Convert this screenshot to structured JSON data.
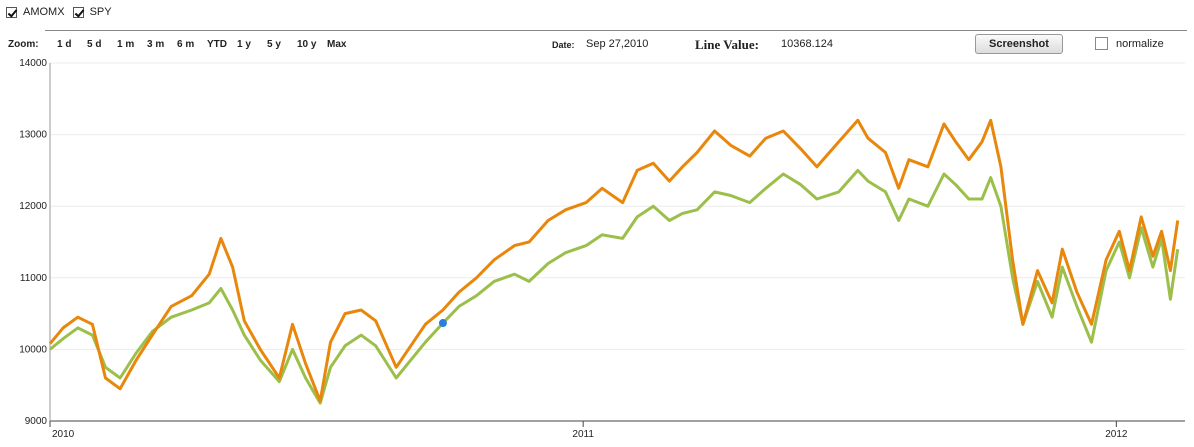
{
  "legend": [
    {
      "label": "AMOMX",
      "checked": true
    },
    {
      "label": "SPY",
      "checked": true
    }
  ],
  "toolbar": {
    "zoom_label": "Zoom:",
    "zoom_options": [
      "1 d",
      "5 d",
      "1 m",
      "3 m",
      "6 m",
      "YTD",
      "1 y",
      "5 y",
      "10 y",
      "Max"
    ],
    "date_label": "Date:",
    "date_value": "Sep 27,2010",
    "line_value_label": "Line Value:",
    "line_value": "10368.124",
    "screenshot_label": "Screenshot",
    "normalize_label": "normalize",
    "normalize_checked": false
  },
  "colors": {
    "AMOMX": "#e8870c",
    "SPY": "#9cbf4b",
    "marker": "#2a7de1"
  },
  "chart_data": {
    "type": "line",
    "title": "",
    "xlabel": "",
    "ylabel": "",
    "ylim": [
      9000,
      14000
    ],
    "y_ticks": [
      9000,
      10000,
      11000,
      12000,
      13000,
      14000
    ],
    "x_ticks": [
      {
        "label": "2010",
        "date": "2010-01-01"
      },
      {
        "label": "2011",
        "date": "2011-01-01"
      },
      {
        "label": "2012",
        "date": "2012-01-01"
      }
    ],
    "xlim": [
      "2010-01-01",
      "2012-02-17"
    ],
    "grid": true,
    "hover_point": {
      "date": "2010-09-27",
      "value": 10368.124,
      "series": "SPY"
    },
    "series": [
      {
        "name": "AMOMX",
        "points": [
          [
            "2010-01-01",
            10080
          ],
          [
            "2010-01-10",
            10300
          ],
          [
            "2010-01-20",
            10450
          ],
          [
            "2010-01-30",
            10350
          ],
          [
            "2010-02-08",
            9600
          ],
          [
            "2010-02-18",
            9450
          ],
          [
            "2010-03-01",
            9850
          ],
          [
            "2010-03-12",
            10200
          ],
          [
            "2010-03-25",
            10600
          ],
          [
            "2010-04-08",
            10750
          ],
          [
            "2010-04-20",
            11050
          ],
          [
            "2010-04-28",
            11550
          ],
          [
            "2010-05-06",
            11150
          ],
          [
            "2010-05-14",
            10400
          ],
          [
            "2010-05-25",
            10000
          ],
          [
            "2010-06-07",
            9600
          ],
          [
            "2010-06-16",
            10350
          ],
          [
            "2010-06-25",
            9800
          ],
          [
            "2010-07-05",
            9280
          ],
          [
            "2010-07-12",
            10100
          ],
          [
            "2010-07-22",
            10500
          ],
          [
            "2010-08-02",
            10550
          ],
          [
            "2010-08-12",
            10400
          ],
          [
            "2010-08-26",
            9750
          ],
          [
            "2010-09-05",
            10050
          ],
          [
            "2010-09-15",
            10350
          ],
          [
            "2010-09-27",
            10550
          ],
          [
            "2010-10-08",
            10800
          ],
          [
            "2010-10-20",
            11000
          ],
          [
            "2010-11-01",
            11250
          ],
          [
            "2010-11-15",
            11450
          ],
          [
            "2010-11-25",
            11500
          ],
          [
            "2010-12-08",
            11800
          ],
          [
            "2010-12-20",
            11950
          ],
          [
            "2011-01-03",
            12050
          ],
          [
            "2011-01-14",
            12250
          ],
          [
            "2011-01-28",
            12050
          ],
          [
            "2011-02-07",
            12500
          ],
          [
            "2011-02-18",
            12600
          ],
          [
            "2011-03-01",
            12350
          ],
          [
            "2011-03-10",
            12550
          ],
          [
            "2011-03-20",
            12750
          ],
          [
            "2011-04-01",
            13050
          ],
          [
            "2011-04-12",
            12850
          ],
          [
            "2011-04-25",
            12700
          ],
          [
            "2011-05-06",
            12950
          ],
          [
            "2011-05-18",
            13050
          ],
          [
            "2011-05-30",
            12800
          ],
          [
            "2011-06-10",
            12550
          ],
          [
            "2011-06-25",
            12900
          ],
          [
            "2011-07-08",
            13200
          ],
          [
            "2011-07-15",
            12950
          ],
          [
            "2011-07-27",
            12750
          ],
          [
            "2011-08-05",
            12250
          ],
          [
            "2011-08-12",
            12650
          ],
          [
            "2011-08-25",
            12550
          ],
          [
            "2011-09-05",
            13150
          ],
          [
            "2011-09-13",
            12900
          ],
          [
            "2011-09-22",
            12650
          ],
          [
            "2011-10-01",
            12900
          ],
          [
            "2011-10-07",
            13200
          ],
          [
            "2011-10-14",
            12550
          ],
          [
            "2011-10-22",
            11250
          ],
          [
            "2011-10-29",
            10350
          ],
          [
            "2011-11-08",
            11100
          ],
          [
            "2011-11-18",
            10650
          ],
          [
            "2011-11-25",
            11400
          ],
          [
            "2011-12-05",
            10800
          ],
          [
            "2011-12-15",
            10350
          ],
          [
            "2011-12-25",
            11250
          ],
          [
            "2012-01-03",
            11650
          ],
          [
            "2012-01-10",
            11100
          ],
          [
            "2012-01-18",
            11850
          ],
          [
            "2012-01-26",
            11300
          ],
          [
            "2012-02-01",
            11650
          ],
          [
            "2012-02-07",
            11100
          ],
          [
            "2012-02-12",
            11800
          ]
        ]
      },
      {
        "name": "SPY",
        "points": [
          [
            "2010-01-01",
            10000
          ],
          [
            "2010-01-10",
            10150
          ],
          [
            "2010-01-20",
            10300
          ],
          [
            "2010-01-30",
            10200
          ],
          [
            "2010-02-08",
            9750
          ],
          [
            "2010-02-18",
            9600
          ],
          [
            "2010-03-01",
            9950
          ],
          [
            "2010-03-12",
            10250
          ],
          [
            "2010-03-25",
            10450
          ],
          [
            "2010-04-08",
            10550
          ],
          [
            "2010-04-20",
            10650
          ],
          [
            "2010-04-28",
            10850
          ],
          [
            "2010-05-06",
            10550
          ],
          [
            "2010-05-14",
            10200
          ],
          [
            "2010-05-25",
            9850
          ],
          [
            "2010-06-07",
            9550
          ],
          [
            "2010-06-16",
            10000
          ],
          [
            "2010-06-25",
            9600
          ],
          [
            "2010-07-05",
            9250
          ],
          [
            "2010-07-12",
            9750
          ],
          [
            "2010-07-22",
            10050
          ],
          [
            "2010-08-02",
            10200
          ],
          [
            "2010-08-12",
            10050
          ],
          [
            "2010-08-26",
            9600
          ],
          [
            "2010-09-05",
            9850
          ],
          [
            "2010-09-15",
            10100
          ],
          [
            "2010-09-27",
            10368
          ],
          [
            "2010-10-08",
            10600
          ],
          [
            "2010-10-20",
            10750
          ],
          [
            "2010-11-01",
            10950
          ],
          [
            "2010-11-15",
            11050
          ],
          [
            "2010-11-25",
            10950
          ],
          [
            "2010-12-08",
            11200
          ],
          [
            "2010-12-20",
            11350
          ],
          [
            "2011-01-03",
            11450
          ],
          [
            "2011-01-14",
            11600
          ],
          [
            "2011-01-28",
            11550
          ],
          [
            "2011-02-07",
            11850
          ],
          [
            "2011-02-18",
            12000
          ],
          [
            "2011-03-01",
            11800
          ],
          [
            "2011-03-10",
            11900
          ],
          [
            "2011-03-20",
            11950
          ],
          [
            "2011-04-01",
            12200
          ],
          [
            "2011-04-12",
            12150
          ],
          [
            "2011-04-25",
            12050
          ],
          [
            "2011-05-06",
            12250
          ],
          [
            "2011-05-18",
            12450
          ],
          [
            "2011-05-30",
            12300
          ],
          [
            "2011-06-10",
            12100
          ],
          [
            "2011-06-25",
            12200
          ],
          [
            "2011-07-08",
            12500
          ],
          [
            "2011-07-15",
            12350
          ],
          [
            "2011-07-27",
            12200
          ],
          [
            "2011-08-05",
            11800
          ],
          [
            "2011-08-12",
            12100
          ],
          [
            "2011-08-25",
            12000
          ],
          [
            "2011-09-05",
            12450
          ],
          [
            "2011-09-13",
            12300
          ],
          [
            "2011-09-22",
            12100
          ],
          [
            "2011-10-01",
            12100
          ],
          [
            "2011-10-07",
            12400
          ],
          [
            "2011-10-14",
            12000
          ],
          [
            "2011-10-22",
            11000
          ],
          [
            "2011-10-29",
            10350
          ],
          [
            "2011-11-08",
            10950
          ],
          [
            "2011-11-18",
            10450
          ],
          [
            "2011-11-25",
            11150
          ],
          [
            "2011-12-05",
            10600
          ],
          [
            "2011-12-15",
            10100
          ],
          [
            "2011-12-25",
            11100
          ],
          [
            "2012-01-03",
            11500
          ],
          [
            "2012-01-10",
            11000
          ],
          [
            "2012-01-18",
            11700
          ],
          [
            "2012-01-26",
            11150
          ],
          [
            "2012-02-01",
            11550
          ],
          [
            "2012-02-07",
            10700
          ],
          [
            "2012-02-12",
            11400
          ]
        ]
      }
    ]
  }
}
